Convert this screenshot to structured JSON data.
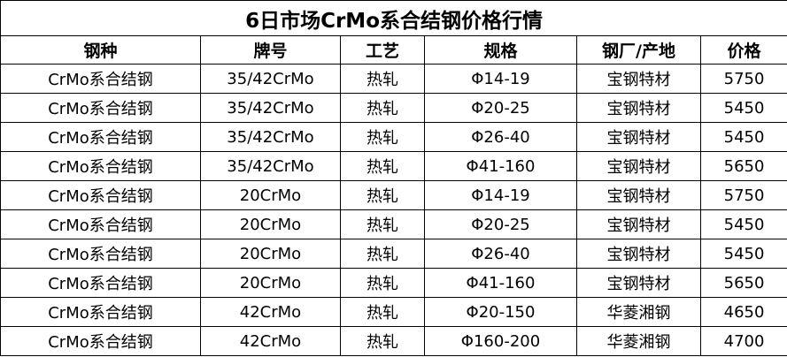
{
  "title": "6日市场CrMo系合结钢价格行情",
  "headers": [
    "钢种",
    "牌号",
    "工艺",
    "规格",
    "钢厂/产地",
    "价格"
  ],
  "rows": [
    [
      "CrMo系合结钢",
      "35/42CrMo",
      "热轧",
      "Φ14-19",
      "宝钢特材",
      "5750"
    ],
    [
      "CrMo系合结钢",
      "35/42CrMo",
      "热轧",
      "Φ20-25",
      "宝钢特材",
      "5450"
    ],
    [
      "CrMo系合结钢",
      "35/42CrMo",
      "热轧",
      "Φ26-40",
      "宝钢特材",
      "5450"
    ],
    [
      "CrMo系合结钢",
      "35/42CrMo",
      "热轧",
      "Φ41-160",
      "宝钢特材",
      "5650"
    ],
    [
      "CrMo系合结钢",
      "20CrMo",
      "热轧",
      "Φ14-19",
      "宝钢特材",
      "5750"
    ],
    [
      "CrMo系合结钢",
      "20CrMo",
      "热轧",
      "Φ20-25",
      "宝钢特材",
      "5450"
    ],
    [
      "CrMo系合结钢",
      "20CrMo",
      "热轧",
      "Φ26-40",
      "宝钢特材",
      "5450"
    ],
    [
      "CrMo系合结钢",
      "20CrMo",
      "热轧",
      "Φ41-160",
      "宝钢特材",
      "5650"
    ],
    [
      "CrMo系合结钢",
      "42CrMo",
      "热轧",
      "Φ20-150",
      "华菱湘钢",
      "4650"
    ],
    [
      "CrMo系合结钢",
      "42CrMo",
      "热轧",
      "Φ160-200",
      "华菱湘钢",
      "4700"
    ]
  ]
}
